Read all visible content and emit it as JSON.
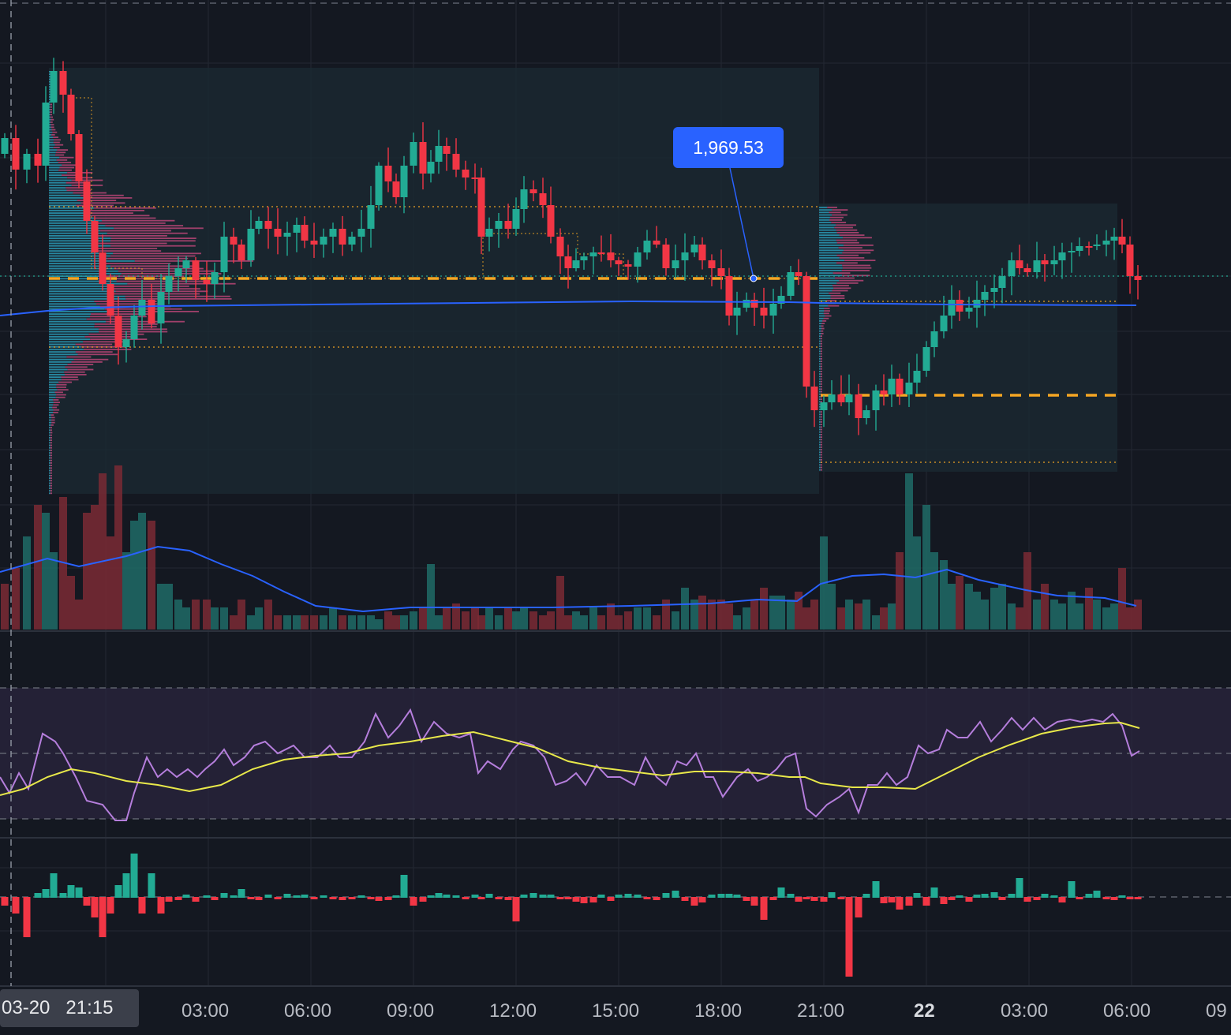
{
  "colors": {
    "background": "#141821",
    "grid": "#232833",
    "up": "#22ab94",
    "down": "#f23645",
    "vwap": "#2962ff",
    "poc": "#f5a623",
    "rsi": "#b57edc",
    "rsi_ma": "#e8e84a",
    "rsi_band": "#2b2540",
    "volume_ma": "#2962ff",
    "price_tag": "#2962ff"
  },
  "time_axis": {
    "labels": [
      "03:00",
      "06:00",
      "09:00",
      "12:00",
      "15:00",
      "18:00",
      "21:00",
      "22",
      "03:00",
      "06:00",
      "09"
    ],
    "bold_label": "22"
  },
  "crosshair": {
    "date": "03-20",
    "time": "21:15"
  },
  "price_tag": {
    "value": "1,969.53"
  },
  "chart_data": [
    {
      "type": "candlestick",
      "description_free": true,
      "price_line": 1969.53,
      "bars": "generated-series",
      "indicators": [
        "volume-profile",
        "vwap",
        "volume",
        "rsi",
        "histogram"
      ]
    }
  ]
}
